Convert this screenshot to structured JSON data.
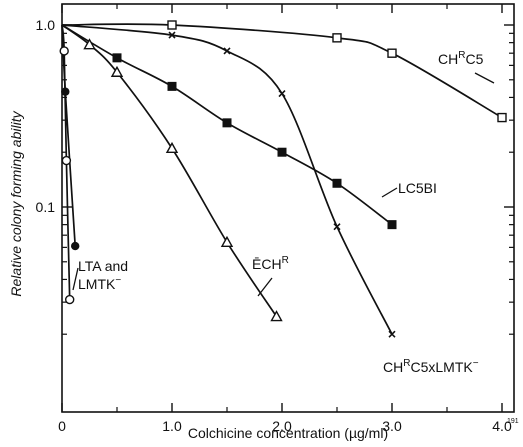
{
  "chart_data": {
    "type": "line",
    "title": "",
    "xlabel": "Colchicine concentration (µg/ml)",
    "ylabel": "Relative colony forming ability",
    "xlim": [
      0,
      4.25
    ],
    "ylim": [
      0.01,
      1.15
    ],
    "yscale": "log",
    "x_ticks": [
      0,
      1.0,
      2.0,
      3.0,
      4.0
    ],
    "x_tick_labels": [
      "0",
      "1.0",
      "2.0",
      "3.0",
      "4.0"
    ],
    "y_ticks": [
      1.0,
      0.1
    ],
    "y_tick_labels": [
      "1.0",
      "0.1"
    ],
    "grid": false,
    "legend": "none",
    "corner_number": "191",
    "series": [
      {
        "name": "CH^RC5",
        "marker": "square-open",
        "x": [
          0,
          1.0,
          2.5,
          3.0,
          4.0
        ],
        "y": [
          1.0,
          1.0,
          0.85,
          0.7,
          0.31
        ]
      },
      {
        "name": "CH^RC5xLMTK^-",
        "marker": "x",
        "x": [
          0,
          1.0,
          1.5,
          2.0,
          2.5,
          3.0
        ],
        "y": [
          1.0,
          0.88,
          0.72,
          0.42,
          0.078,
          0.02
        ]
      },
      {
        "name": "LC5BI",
        "marker": "square-filled",
        "x": [
          0,
          0.5,
          1.0,
          1.5,
          2.0,
          2.5,
          3.0
        ],
        "y": [
          1.0,
          0.66,
          0.46,
          0.29,
          0.2,
          0.135,
          0.08
        ]
      },
      {
        "name": "ĒCH^R",
        "marker": "triangle-open",
        "x": [
          0,
          0.25,
          0.5,
          1.0,
          1.5,
          1.95
        ],
        "y": [
          1.0,
          0.78,
          0.55,
          0.21,
          0.064,
          0.025
        ]
      },
      {
        "name": "LTA and LMTK^-",
        "marker": "circle-filled",
        "x": [
          0,
          0.03,
          0.12
        ],
        "y": [
          1.0,
          0.43,
          0.061
        ]
      },
      {
        "name": "LTA and LMTK^-",
        "marker": "circle-open",
        "x": [
          0,
          0.02,
          0.04,
          0.07
        ],
        "y": [
          1.0,
          0.72,
          0.18,
          0.031
        ]
      }
    ],
    "labels": [
      {
        "id": "chrc5",
        "base": "CH",
        "sup": "R",
        "rest": "C5"
      },
      {
        "id": "chrc5x",
        "base": "CH",
        "sup": "R",
        "rest": "C5xLMTK",
        "sup2": "−"
      },
      {
        "id": "lc5bi",
        "text": "LC5BI"
      },
      {
        "id": "echr",
        "base": "ĒCH",
        "sup": "R"
      },
      {
        "id": "lta1",
        "text": "LTA and"
      },
      {
        "id": "lta2",
        "base": "LMTK",
        "sup": "−"
      }
    ]
  }
}
